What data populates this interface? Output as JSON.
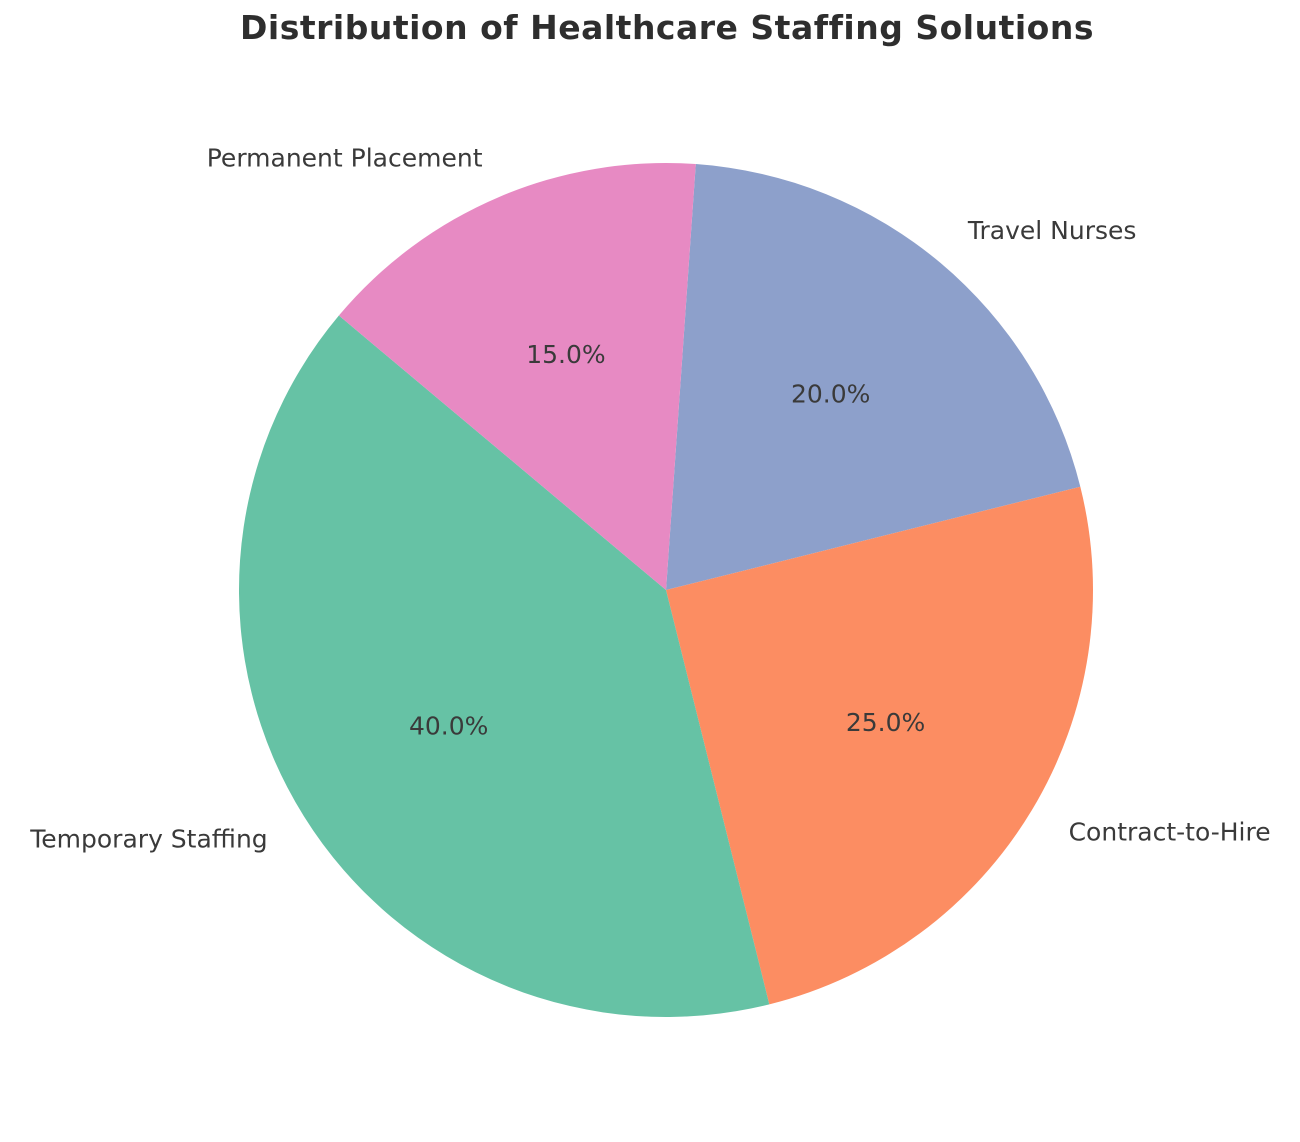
{
  "chart_data": {
    "type": "pie",
    "title": "Distribution of Healthcare Staffing Solutions",
    "slices": [
      {
        "label": "Travel Nurses",
        "value": 20.0,
        "pct_label": "20.0%",
        "color": "#8da0cb"
      },
      {
        "label": "Contract-to-Hire",
        "value": 25.0,
        "pct_label": "25.0%",
        "color": "#fc8d62"
      },
      {
        "label": "Temporary Staffing",
        "value": 40.0,
        "pct_label": "40.0%",
        "color": "#66c2a5"
      },
      {
        "label": "Permanent Placement",
        "value": 15.0,
        "pct_label": "15.0%",
        "color": "#e78ac3"
      }
    ],
    "start_angle_deg": 86,
    "direction": "clockwise",
    "label_distance": 1.1,
    "pct_distance": 0.6,
    "legend": "none",
    "grid": "off",
    "background_color": "#ffffff",
    "text_color": "#3a3a3a",
    "title_color": "#2e2e2e"
  }
}
